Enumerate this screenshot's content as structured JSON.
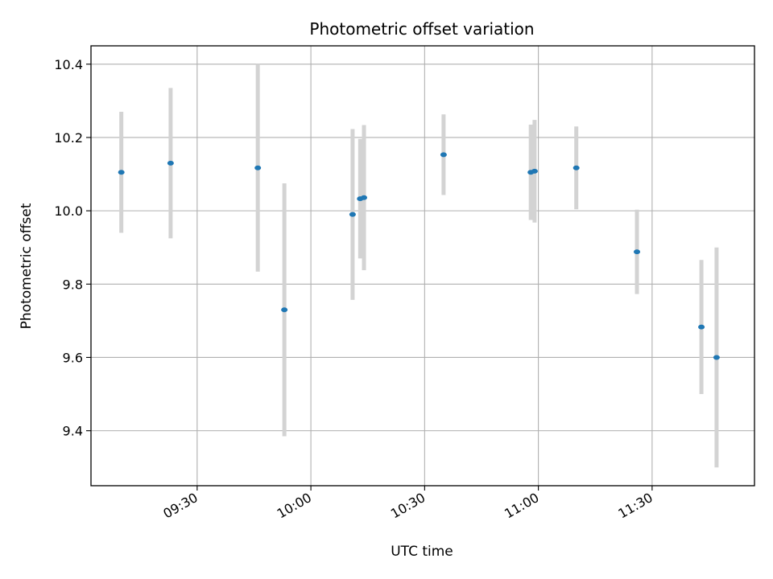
{
  "chart_data": {
    "type": "scatter",
    "title": "Photometric offset variation",
    "xlabel": "UTC time",
    "ylabel": "Photometric offset",
    "x_tick_labels": [
      "09:30",
      "10:00",
      "10:30",
      "11:00",
      "11:30"
    ],
    "x_ticks": [
      "09:30",
      "10:00",
      "10:30",
      "11:00",
      "11:30"
    ],
    "xlim": [
      "09:02",
      "11:57"
    ],
    "ylim": [
      9.25,
      10.45
    ],
    "y_ticks": [
      9.4,
      9.6,
      9.8,
      10.0,
      10.2,
      10.4
    ],
    "y_tick_labels": [
      "9.4",
      "9.6",
      "9.8",
      "10.0",
      "10.2",
      "10.4"
    ],
    "grid": true,
    "colors": {
      "points": "#1f77b4",
      "errorbars": "#d3d3d3",
      "grid": "#b0b0b0"
    },
    "points": [
      {
        "time": "09:10",
        "y": 10.105,
        "err": 0.165
      },
      {
        "time": "09:23",
        "y": 10.13,
        "err": 0.205
      },
      {
        "time": "09:46",
        "y": 10.117,
        "err": 0.283
      },
      {
        "time": "09:53",
        "y": 9.73,
        "err": 0.345
      },
      {
        "time": "10:11",
        "y": 9.99,
        "err": 0.233
      },
      {
        "time": "10:13",
        "y": 10.033,
        "err": 0.163
      },
      {
        "time": "10:14",
        "y": 10.036,
        "err": 0.198
      },
      {
        "time": "10:35",
        "y": 10.153,
        "err": 0.11
      },
      {
        "time": "10:58",
        "y": 10.105,
        "err": 0.13
      },
      {
        "time": "10:59",
        "y": 10.108,
        "err": 0.14
      },
      {
        "time": "11:10",
        "y": 10.117,
        "err": 0.113
      },
      {
        "time": "11:26",
        "y": 9.888,
        "err": 0.115
      },
      {
        "time": "11:43",
        "y": 9.683,
        "err": 0.183
      },
      {
        "time": "11:47",
        "y": 9.6,
        "err": 0.3
      }
    ]
  }
}
